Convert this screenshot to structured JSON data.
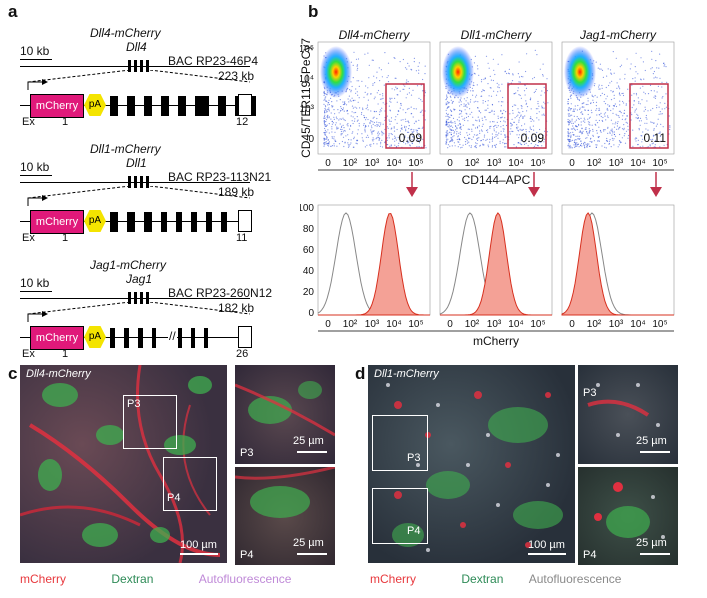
{
  "panel_labels": {
    "a": "a",
    "b": "b",
    "c": "c",
    "d": "d"
  },
  "panel_a": {
    "constructs": [
      {
        "title": "Dll4-mCherry",
        "scale": "10 kb",
        "gene": "Dll4",
        "bac": "BAC RP23-46P4",
        "size": "223 kb",
        "cassette": "mCherry",
        "pa": "pA",
        "ex": "Ex",
        "first": "1",
        "last": "12"
      },
      {
        "title": "Dll1-mCherry",
        "scale": "10 kb",
        "gene": "Dll1",
        "bac": "BAC RP23-113N21",
        "size": "189 kb",
        "cassette": "mCherry",
        "pa": "pA",
        "ex": "Ex",
        "first": "1",
        "last": "11"
      },
      {
        "title": "Jag1-mCherry",
        "scale": "10 kb",
        "gene": "Jag1",
        "bac": "BAC RP23-260N12",
        "size": "182 kb",
        "cassette": "mCherry",
        "pa": "pA",
        "ex": "Ex",
        "first": "1",
        "last": "26"
      }
    ],
    "colors": {
      "mcherry_box": "#e0197a",
      "pa_hex": "#f4e400"
    }
  },
  "panel_b": {
    "columns": [
      "Dll4-mCherry",
      "Dll1-mCherry",
      "Jag1-mCherry"
    ],
    "gate_values": [
      "0.09",
      "0.09",
      "0.11"
    ],
    "y_axis_label": "CD45/TER119–PeCy7",
    "x_axis_label_top": "CD144–APC",
    "x_axis_label_bottom": "mCherry",
    "y_ticks_top": [
      "10⁵",
      "10⁴",
      "10³",
      "0"
    ],
    "x_ticks": [
      "0",
      "10²",
      "10³",
      "10⁴",
      "10⁵"
    ],
    "y_ticks_hist": [
      "100",
      "80",
      "60",
      "40",
      "20",
      "0"
    ],
    "gate_color": "#c0304a",
    "hist_fill": "#f4a196",
    "hist_line": "#d7301f"
  },
  "panel_c": {
    "title": "Dll4-mCherry",
    "roi_labels": [
      "P3",
      "P4"
    ],
    "inset_labels": [
      "P3",
      "P4"
    ],
    "scale_main": "100 µm",
    "scale_inset": [
      "25 µm",
      "25 µm"
    ],
    "legend": [
      {
        "text": "mCherry",
        "color": "#e8383d"
      },
      {
        "text": "Dextran",
        "color": "#2e8b57"
      },
      {
        "text": "Autofluorescence",
        "color": "#c08ad8"
      }
    ]
  },
  "panel_d": {
    "title": "Dll1-mCherry",
    "roi_labels": [
      "P3",
      "P4"
    ],
    "inset_labels": [
      "P3",
      "P4"
    ],
    "scale_main": "100 µm",
    "scale_inset": [
      "25 µm",
      "25 µm"
    ],
    "legend": [
      {
        "text": "mCherry",
        "color": "#e8383d"
      },
      {
        "text": "Dextran",
        "color": "#2e8b57"
      },
      {
        "text": "Autofluorescence",
        "color": "#8a8a8a"
      }
    ]
  }
}
